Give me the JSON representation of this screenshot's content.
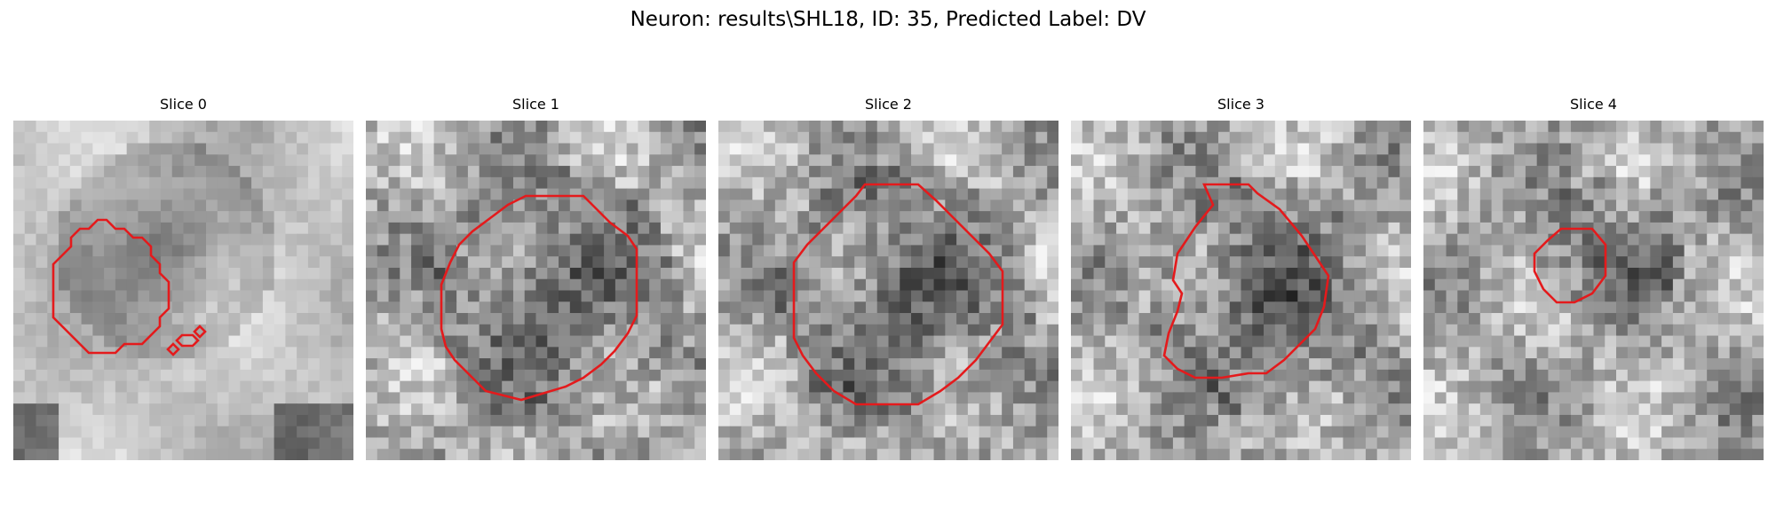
{
  "figure": {
    "title": "Neuron: results\\SHL18, ID: 35, Predicted Label: DV",
    "contour_color": "#e41a1c",
    "panels": [
      {
        "title": "Slice 0"
      },
      {
        "title": "Slice 1"
      },
      {
        "title": "Slice 2"
      },
      {
        "title": "Slice 3"
      },
      {
        "title": "Slice 4"
      }
    ]
  }
}
